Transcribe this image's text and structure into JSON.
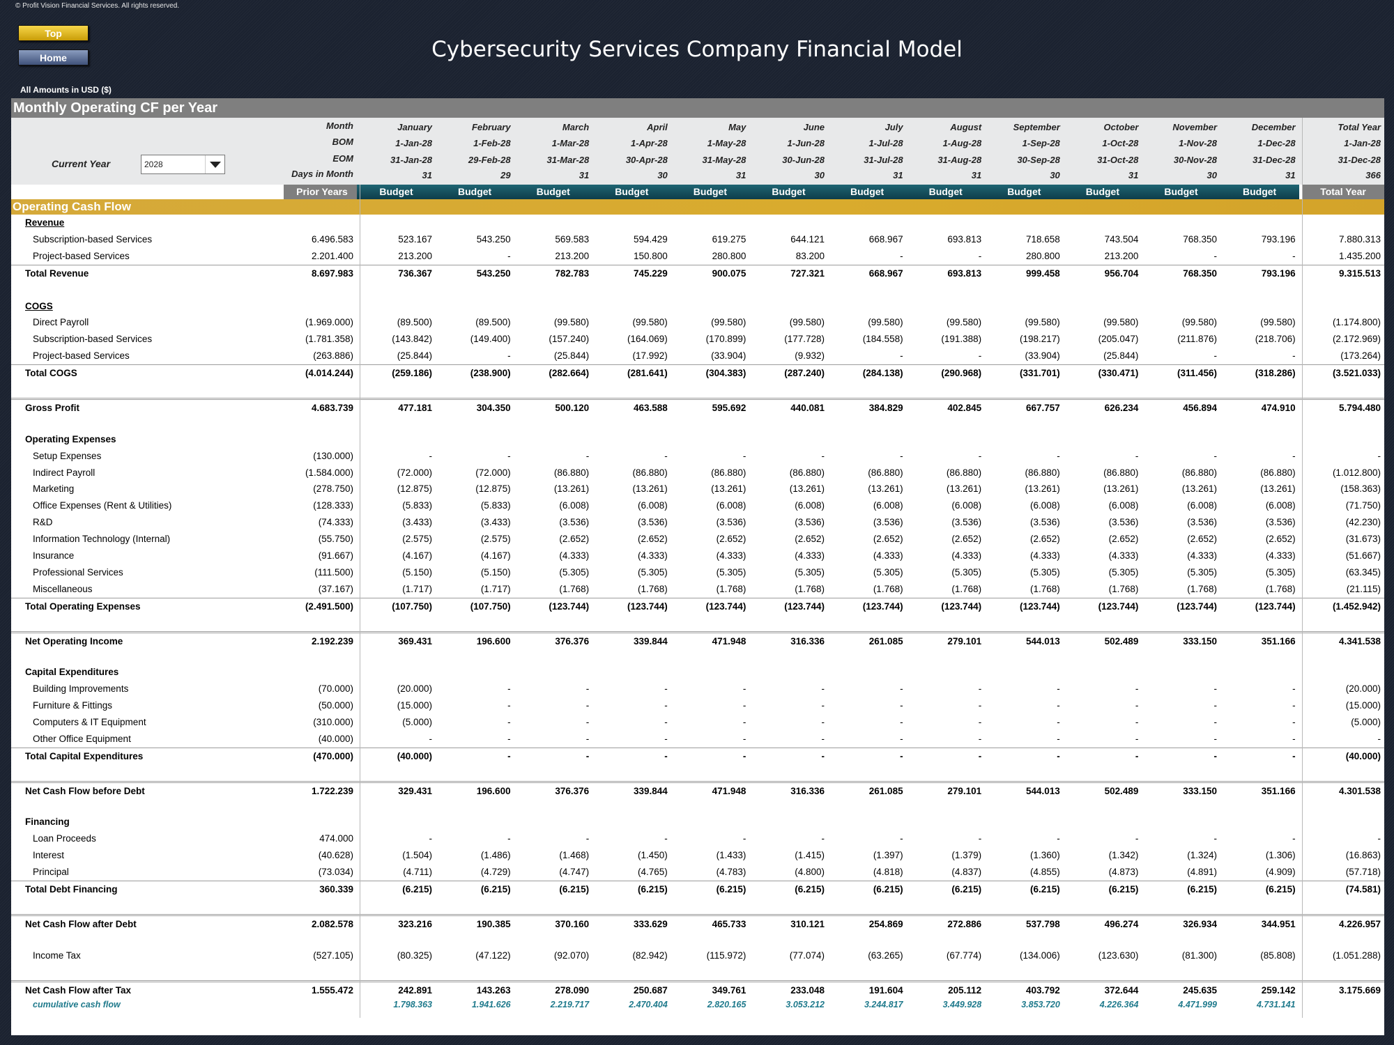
{
  "copyright": "© Profit Vision Financial Services. All rights reserved.",
  "buttons": {
    "top": "Top",
    "home": "Home"
  },
  "title": "Cybersecurity Services Company Financial Model",
  "amounts_note": "All Amounts in  USD ($)",
  "section_title": "Monthly Operating CF per Year",
  "current_year": {
    "label": "Current Year",
    "value": "2028"
  },
  "header": {
    "row_labels": [
      "Month",
      "BOM",
      "EOM",
      "Days in Month"
    ],
    "months": [
      {
        "name": "January",
        "bom": "1-Jan-28",
        "eom": "31-Jan-28",
        "days": "31"
      },
      {
        "name": "February",
        "bom": "1-Feb-28",
        "eom": "29-Feb-28",
        "days": "29"
      },
      {
        "name": "March",
        "bom": "1-Mar-28",
        "eom": "31-Mar-28",
        "days": "31"
      },
      {
        "name": "April",
        "bom": "1-Apr-28",
        "eom": "30-Apr-28",
        "days": "30"
      },
      {
        "name": "May",
        "bom": "1-May-28",
        "eom": "31-May-28",
        "days": "31"
      },
      {
        "name": "June",
        "bom": "1-Jun-28",
        "eom": "30-Jun-28",
        "days": "30"
      },
      {
        "name": "July",
        "bom": "1-Jul-28",
        "eom": "31-Jul-28",
        "days": "31"
      },
      {
        "name": "August",
        "bom": "1-Aug-28",
        "eom": "31-Aug-28",
        "days": "31"
      },
      {
        "name": "September",
        "bom": "1-Sep-28",
        "eom": "30-Sep-28",
        "days": "30"
      },
      {
        "name": "October",
        "bom": "1-Oct-28",
        "eom": "31-Oct-28",
        "days": "31"
      },
      {
        "name": "November",
        "bom": "1-Nov-28",
        "eom": "30-Nov-28",
        "days": "30"
      },
      {
        "name": "December",
        "bom": "1-Dec-28",
        "eom": "31-Dec-28",
        "days": "31"
      },
      {
        "name": "Total Year",
        "bom": "1-Jan-28",
        "eom": "31-Dec-28",
        "days": "366"
      }
    ],
    "prior_label": "Prior Years",
    "budget_label": "Budget",
    "total_label": "Total Year"
  },
  "ocf_title": "Operating Cash Flow",
  "rows": [
    {
      "label": "Revenue",
      "type": "section",
      "values": []
    },
    {
      "label": "Subscription-based Services",
      "type": "item",
      "values": [
        "6.496.583",
        "523.167",
        "543.250",
        "569.583",
        "594.429",
        "619.275",
        "644.121",
        "668.967",
        "693.813",
        "718.658",
        "743.504",
        "768.350",
        "793.196",
        "7.880.313"
      ]
    },
    {
      "label": "Project-based Services",
      "type": "item",
      "values": [
        "2.201.400",
        "213.200",
        "-",
        "213.200",
        "150.800",
        "280.800",
        "83.200",
        "-",
        "-",
        "280.800",
        "213.200",
        "-",
        "-",
        "1.435.200"
      ]
    },
    {
      "label": "Total Revenue",
      "type": "total",
      "values": [
        "8.697.983",
        "736.367",
        "543.250",
        "782.783",
        "745.229",
        "900.075",
        "727.321",
        "668.967",
        "693.813",
        "999.458",
        "956.704",
        "768.350",
        "793.196",
        "9.315.513"
      ]
    },
    {
      "label": "",
      "type": "blank",
      "values": []
    },
    {
      "label": "COGS",
      "type": "section",
      "values": []
    },
    {
      "label": "Direct Payroll",
      "type": "item",
      "values": [
        "(1.969.000)",
        "(89.500)",
        "(89.500)",
        "(99.580)",
        "(99.580)",
        "(99.580)",
        "(99.580)",
        "(99.580)",
        "(99.580)",
        "(99.580)",
        "(99.580)",
        "(99.580)",
        "(99.580)",
        "(1.174.800)"
      ]
    },
    {
      "label": "Subscription-based Services",
      "type": "item",
      "values": [
        "(1.781.358)",
        "(143.842)",
        "(149.400)",
        "(157.240)",
        "(164.069)",
        "(170.899)",
        "(177.728)",
        "(184.558)",
        "(191.388)",
        "(198.217)",
        "(205.047)",
        "(211.876)",
        "(218.706)",
        "(2.172.969)"
      ]
    },
    {
      "label": "Project-based Services",
      "type": "item",
      "values": [
        "(263.886)",
        "(25.844)",
        "-",
        "(25.844)",
        "(17.992)",
        "(33.904)",
        "(9.932)",
        "-",
        "-",
        "(33.904)",
        "(25.844)",
        "-",
        "-",
        "(173.264)"
      ]
    },
    {
      "label": "Total COGS",
      "type": "total",
      "values": [
        "(4.014.244)",
        "(259.186)",
        "(238.900)",
        "(282.664)",
        "(281.641)",
        "(304.383)",
        "(287.240)",
        "(284.138)",
        "(290.968)",
        "(331.701)",
        "(330.471)",
        "(311.456)",
        "(318.286)",
        "(3.521.033)"
      ]
    },
    {
      "label": "",
      "type": "blank",
      "values": []
    },
    {
      "label": "Gross Profit",
      "type": "grand",
      "values": [
        "4.683.739",
        "477.181",
        "304.350",
        "500.120",
        "463.588",
        "595.692",
        "440.081",
        "384.829",
        "402.845",
        "667.757",
        "626.234",
        "456.894",
        "474.910",
        "5.794.480"
      ]
    },
    {
      "label": "",
      "type": "blank",
      "values": []
    },
    {
      "label": "Operating Expenses",
      "type": "section2",
      "values": []
    },
    {
      "label": "Setup Expenses",
      "type": "item",
      "values": [
        "(130.000)",
        "-",
        "-",
        "-",
        "-",
        "-",
        "-",
        "-",
        "-",
        "-",
        "-",
        "-",
        "-",
        "-"
      ]
    },
    {
      "label": "Indirect Payroll",
      "type": "item",
      "values": [
        "(1.584.000)",
        "(72.000)",
        "(72.000)",
        "(86.880)",
        "(86.880)",
        "(86.880)",
        "(86.880)",
        "(86.880)",
        "(86.880)",
        "(86.880)",
        "(86.880)",
        "(86.880)",
        "(86.880)",
        "(1.012.800)"
      ]
    },
    {
      "label": "Marketing",
      "type": "item",
      "values": [
        "(278.750)",
        "(12.875)",
        "(12.875)",
        "(13.261)",
        "(13.261)",
        "(13.261)",
        "(13.261)",
        "(13.261)",
        "(13.261)",
        "(13.261)",
        "(13.261)",
        "(13.261)",
        "(13.261)",
        "(158.363)"
      ]
    },
    {
      "label": "Office Expenses (Rent & Utilities)",
      "type": "item",
      "values": [
        "(128.333)",
        "(5.833)",
        "(5.833)",
        "(6.008)",
        "(6.008)",
        "(6.008)",
        "(6.008)",
        "(6.008)",
        "(6.008)",
        "(6.008)",
        "(6.008)",
        "(6.008)",
        "(6.008)",
        "(71.750)"
      ]
    },
    {
      "label": "R&D",
      "type": "item",
      "values": [
        "(74.333)",
        "(3.433)",
        "(3.433)",
        "(3.536)",
        "(3.536)",
        "(3.536)",
        "(3.536)",
        "(3.536)",
        "(3.536)",
        "(3.536)",
        "(3.536)",
        "(3.536)",
        "(3.536)",
        "(42.230)"
      ]
    },
    {
      "label": "Information Technology (Internal)",
      "type": "item",
      "values": [
        "(55.750)",
        "(2.575)",
        "(2.575)",
        "(2.652)",
        "(2.652)",
        "(2.652)",
        "(2.652)",
        "(2.652)",
        "(2.652)",
        "(2.652)",
        "(2.652)",
        "(2.652)",
        "(2.652)",
        "(31.673)"
      ]
    },
    {
      "label": "Insurance",
      "type": "item",
      "values": [
        "(91.667)",
        "(4.167)",
        "(4.167)",
        "(4.333)",
        "(4.333)",
        "(4.333)",
        "(4.333)",
        "(4.333)",
        "(4.333)",
        "(4.333)",
        "(4.333)",
        "(4.333)",
        "(4.333)",
        "(51.667)"
      ]
    },
    {
      "label": "Professional Services",
      "type": "item",
      "values": [
        "(111.500)",
        "(5.150)",
        "(5.150)",
        "(5.305)",
        "(5.305)",
        "(5.305)",
        "(5.305)",
        "(5.305)",
        "(5.305)",
        "(5.305)",
        "(5.305)",
        "(5.305)",
        "(5.305)",
        "(63.345)"
      ]
    },
    {
      "label": "Miscellaneous",
      "type": "item",
      "values": [
        "(37.167)",
        "(1.717)",
        "(1.717)",
        "(1.768)",
        "(1.768)",
        "(1.768)",
        "(1.768)",
        "(1.768)",
        "(1.768)",
        "(1.768)",
        "(1.768)",
        "(1.768)",
        "(1.768)",
        "(21.115)"
      ]
    },
    {
      "label": "Total Operating Expenses",
      "type": "total",
      "values": [
        "(2.491.500)",
        "(107.750)",
        "(107.750)",
        "(123.744)",
        "(123.744)",
        "(123.744)",
        "(123.744)",
        "(123.744)",
        "(123.744)",
        "(123.744)",
        "(123.744)",
        "(123.744)",
        "(123.744)",
        "(1.452.942)"
      ]
    },
    {
      "label": "",
      "type": "blank",
      "values": []
    },
    {
      "label": "Net Operating Income",
      "type": "grand",
      "values": [
        "2.192.239",
        "369.431",
        "196.600",
        "376.376",
        "339.844",
        "471.948",
        "316.336",
        "261.085",
        "279.101",
        "544.013",
        "502.489",
        "333.150",
        "351.166",
        "4.341.538"
      ]
    },
    {
      "label": "",
      "type": "blank",
      "values": []
    },
    {
      "label": "Capital Expenditures",
      "type": "section2",
      "values": []
    },
    {
      "label": "Building Improvements",
      "type": "item",
      "values": [
        "(70.000)",
        "(20.000)",
        "-",
        "-",
        "-",
        "-",
        "-",
        "-",
        "-",
        "-",
        "-",
        "-",
        "-",
        "(20.000)"
      ]
    },
    {
      "label": "Furniture & Fittings",
      "type": "item",
      "values": [
        "(50.000)",
        "(15.000)",
        "-",
        "-",
        "-",
        "-",
        "-",
        "-",
        "-",
        "-",
        "-",
        "-",
        "-",
        "(15.000)"
      ]
    },
    {
      "label": "Computers & IT Equipment",
      "type": "item",
      "values": [
        "(310.000)",
        "(5.000)",
        "-",
        "-",
        "-",
        "-",
        "-",
        "-",
        "-",
        "-",
        "-",
        "-",
        "-",
        "(5.000)"
      ]
    },
    {
      "label": "Other Office Equipment",
      "type": "item",
      "values": [
        "(40.000)",
        "-",
        "-",
        "-",
        "-",
        "-",
        "-",
        "-",
        "-",
        "-",
        "-",
        "-",
        "-",
        "-"
      ]
    },
    {
      "label": "Total Capital Expenditures",
      "type": "total",
      "values": [
        "(470.000)",
        "(40.000)",
        "-",
        "-",
        "-",
        "-",
        "-",
        "-",
        "-",
        "-",
        "-",
        "-",
        "-",
        "(40.000)"
      ]
    },
    {
      "label": "",
      "type": "blank",
      "values": []
    },
    {
      "label": "Net Cash Flow before Debt",
      "type": "grand",
      "values": [
        "1.722.239",
        "329.431",
        "196.600",
        "376.376",
        "339.844",
        "471.948",
        "316.336",
        "261.085",
        "279.101",
        "544.013",
        "502.489",
        "333.150",
        "351.166",
        "4.301.538"
      ]
    },
    {
      "label": "",
      "type": "blank",
      "values": []
    },
    {
      "label": "Financing",
      "type": "section2",
      "values": []
    },
    {
      "label": "Loan Proceeds",
      "type": "item",
      "values": [
        "474.000",
        "-",
        "-",
        "-",
        "-",
        "-",
        "-",
        "-",
        "-",
        "-",
        "-",
        "-",
        "-",
        "-"
      ]
    },
    {
      "label": "Interest",
      "type": "item",
      "values": [
        "(40.628)",
        "(1.504)",
        "(1.486)",
        "(1.468)",
        "(1.450)",
        "(1.433)",
        "(1.415)",
        "(1.397)",
        "(1.379)",
        "(1.360)",
        "(1.342)",
        "(1.324)",
        "(1.306)",
        "(16.863)"
      ]
    },
    {
      "label": "Principal",
      "type": "item",
      "values": [
        "(73.034)",
        "(4.711)",
        "(4.729)",
        "(4.747)",
        "(4.765)",
        "(4.783)",
        "(4.800)",
        "(4.818)",
        "(4.837)",
        "(4.855)",
        "(4.873)",
        "(4.891)",
        "(4.909)",
        "(57.718)"
      ]
    },
    {
      "label": "Total Debt Financing",
      "type": "total",
      "values": [
        "360.339",
        "(6.215)",
        "(6.215)",
        "(6.215)",
        "(6.215)",
        "(6.215)",
        "(6.215)",
        "(6.215)",
        "(6.215)",
        "(6.215)",
        "(6.215)",
        "(6.215)",
        "(6.215)",
        "(74.581)"
      ]
    },
    {
      "label": "",
      "type": "blank",
      "values": []
    },
    {
      "label": "Net Cash Flow after Debt",
      "type": "grand",
      "values": [
        "2.082.578",
        "323.216",
        "190.385",
        "370.160",
        "333.629",
        "465.733",
        "310.121",
        "254.869",
        "272.886",
        "537.798",
        "496.274",
        "326.934",
        "344.951",
        "4.226.957"
      ]
    },
    {
      "label": "",
      "type": "blank",
      "values": []
    },
    {
      "label": "Income Tax",
      "type": "item",
      "values": [
        "(527.105)",
        "(80.325)",
        "(47.122)",
        "(92.070)",
        "(82.942)",
        "(115.972)",
        "(77.074)",
        "(63.265)",
        "(67.774)",
        "(134.006)",
        "(123.630)",
        "(81.300)",
        "(85.808)",
        "(1.051.288)"
      ]
    },
    {
      "label": "",
      "type": "blank",
      "values": []
    },
    {
      "label": "Net Cash Flow after Tax",
      "type": "grand",
      "values": [
        "1.555.472",
        "242.891",
        "143.263",
        "278.090",
        "250.687",
        "349.761",
        "233.048",
        "191.604",
        "205.112",
        "403.792",
        "372.644",
        "245.635",
        "259.142",
        "3.175.669"
      ]
    },
    {
      "label": "cumulative cash flow",
      "type": "cum",
      "values": [
        "",
        "1.798.363",
        "1.941.626",
        "2.219.717",
        "2.470.404",
        "2.820.165",
        "3.053.212",
        "3.244.817",
        "3.449.928",
        "3.853.720",
        "4.226.364",
        "4.471.999",
        "4.731.141",
        ""
      ]
    }
  ]
}
